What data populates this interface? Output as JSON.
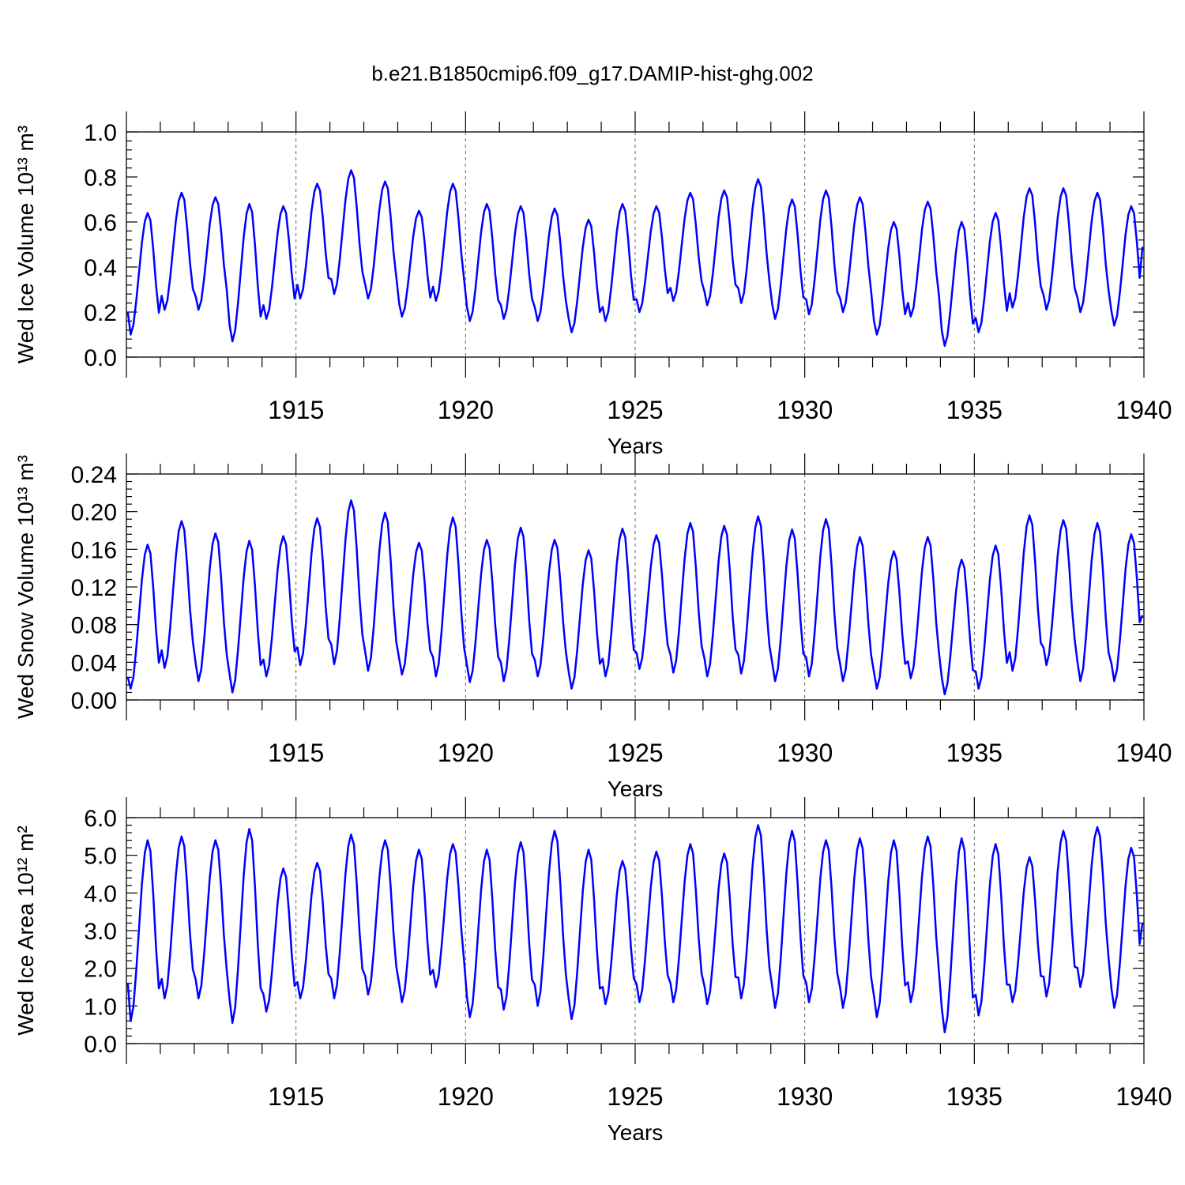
{
  "title": "b.e21.B1850cmip6.f09_g17.DAMIP-hist-ghg.002",
  "series_color": "#0000ff",
  "chart_data": [
    {
      "type": "line",
      "ylabel": "Wed Ice Volume 10^13 m^3",
      "xlabel": "Years",
      "xlim": [
        1910.0,
        1940.0
      ],
      "ylim": [
        0.0,
        1.0
      ],
      "yticks": [
        "0.0",
        "0.2",
        "0.4",
        "0.6",
        "0.8",
        "1.0"
      ],
      "xticks": [
        "1915",
        "1920",
        "1925",
        "1930",
        "1935",
        "1940"
      ],
      "grid_x": [
        1915,
        1920,
        1925,
        1930,
        1935
      ],
      "annual_min": [
        0.1,
        0.21,
        0.21,
        0.07,
        0.17,
        0.26,
        0.28,
        0.26,
        0.18,
        0.25,
        0.16,
        0.17,
        0.16,
        0.11,
        0.16,
        0.2,
        0.25,
        0.23,
        0.24,
        0.17,
        0.19,
        0.2,
        0.1,
        0.18,
        0.05,
        0.11,
        0.22,
        0.21,
        0.2,
        0.14
      ],
      "annual_max": [
        0.64,
        0.73,
        0.71,
        0.68,
        0.67,
        0.77,
        0.83,
        0.78,
        0.65,
        0.77,
        0.68,
        0.67,
        0.66,
        0.61,
        0.68,
        0.67,
        0.73,
        0.74,
        0.79,
        0.7,
        0.74,
        0.71,
        0.6,
        0.69,
        0.6,
        0.64,
        0.75,
        0.75,
        0.73,
        0.67
      ],
      "start_value": 0.2,
      "end_value": 0.49
    },
    {
      "type": "line",
      "ylabel": "Wed Snow Volume 10^13 m^3",
      "xlabel": "Years",
      "xlim": [
        1910.0,
        1940.0
      ],
      "ylim": [
        0.0,
        0.24
      ],
      "yticks": [
        "0.00",
        "0.04",
        "0.08",
        "0.12",
        "0.16",
        "0.20",
        "0.24"
      ],
      "xticks": [
        "1915",
        "1920",
        "1925",
        "1930",
        "1935",
        "1940"
      ],
      "grid_x": [
        1915,
        1920,
        1925,
        1930,
        1935
      ],
      "annual_min": [
        0.012,
        0.034,
        0.02,
        0.008,
        0.025,
        0.037,
        0.038,
        0.031,
        0.027,
        0.025,
        0.019,
        0.02,
        0.025,
        0.012,
        0.025,
        0.033,
        0.029,
        0.025,
        0.028,
        0.02,
        0.025,
        0.02,
        0.012,
        0.023,
        0.006,
        0.012,
        0.031,
        0.037,
        0.02,
        0.02
      ],
      "annual_max": [
        0.165,
        0.19,
        0.177,
        0.169,
        0.174,
        0.193,
        0.212,
        0.199,
        0.167,
        0.194,
        0.17,
        0.183,
        0.17,
        0.159,
        0.182,
        0.175,
        0.188,
        0.185,
        0.195,
        0.181,
        0.192,
        0.173,
        0.158,
        0.173,
        0.149,
        0.164,
        0.196,
        0.191,
        0.188,
        0.176
      ],
      "start_value": 0.024,
      "end_value": 0.09
    },
    {
      "type": "line",
      "ylabel": "Wed Ice Area 10^12 m^2",
      "xlabel": "Years",
      "xlim": [
        1910.0,
        1940.0
      ],
      "ylim": [
        0.0,
        6.0
      ],
      "yticks": [
        "0.0",
        "1.0",
        "2.0",
        "3.0",
        "4.0",
        "5.0",
        "6.0"
      ],
      "xticks": [
        "1915",
        "1920",
        "1925",
        "1930",
        "1935",
        "1940"
      ],
      "grid_x": [
        1915,
        1920,
        1925,
        1930,
        1935
      ],
      "annual_min": [
        0.6,
        1.2,
        1.2,
        0.55,
        0.85,
        1.2,
        1.2,
        1.3,
        1.1,
        1.5,
        0.7,
        0.9,
        1.0,
        0.65,
        1.05,
        1.1,
        1.1,
        1.05,
        1.2,
        0.95,
        1.1,
        0.95,
        0.7,
        1.1,
        0.3,
        0.75,
        1.1,
        1.25,
        1.5,
        0.95
      ],
      "annual_max": [
        5.4,
        5.5,
        5.4,
        5.7,
        4.65,
        4.8,
        5.55,
        5.4,
        5.15,
        5.3,
        5.15,
        5.35,
        5.65,
        5.15,
        4.85,
        5.1,
        5.3,
        5.05,
        5.8,
        5.65,
        5.4,
        5.45,
        5.4,
        5.5,
        5.45,
        5.3,
        4.95,
        5.65,
        5.75,
        5.2
      ],
      "start_value": 1.6,
      "end_value": 3.2
    }
  ]
}
